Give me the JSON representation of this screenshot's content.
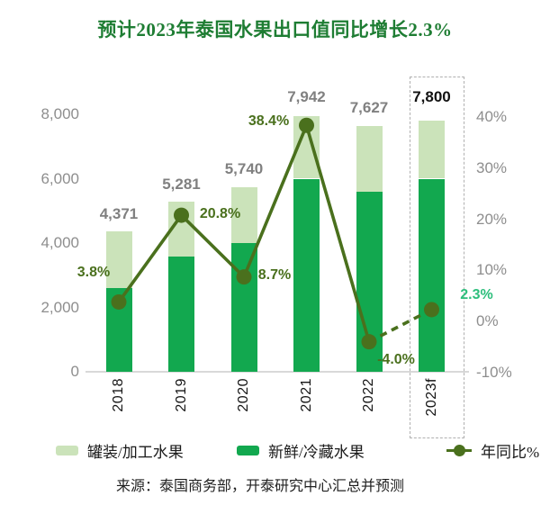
{
  "title": "预计2023年泰国水果出口值同比增长2.3%",
  "source": "来源：泰国商务部，开泰研究中心汇总并预测",
  "legend": {
    "canned": "罐装/加工水果",
    "fresh": "新鲜/冷藏水果",
    "yoy": "年同比%"
  },
  "colors": {
    "canned": "#cbe3ba",
    "fresh": "#12a84f",
    "line": "#4a701d",
    "yoy_forecast_label": "#2dbe7c",
    "axis_text": "#8e8e8e",
    "bar_label": "#808080",
    "forecast_bar_label": "#111111",
    "title": "#1e7d33",
    "forecast_box": "#b0b0b0"
  },
  "chart_data": {
    "type": "bar",
    "subtype": "stacked-bars-with-line-overlay",
    "categories": [
      "2018",
      "2019",
      "2020",
      "2021",
      "2022",
      "2023f"
    ],
    "series": [
      {
        "name": "罐装/加工水果",
        "type": "bar",
        "stack": true,
        "axis": "left",
        "values": [
          1771,
          1701,
          1740,
          1942,
          2037,
          1800
        ]
      },
      {
        "name": "新鲜/冷藏水果",
        "type": "bar",
        "stack": true,
        "axis": "left",
        "values": [
          2600,
          3580,
          4000,
          6000,
          5590,
          6000
        ]
      },
      {
        "name": "年同比%",
        "type": "line",
        "axis": "right",
        "values": [
          3.8,
          20.8,
          8.7,
          38.4,
          -4.0,
          2.3
        ],
        "labels": [
          "3.8%",
          "20.8%",
          "8.7%",
          "38.4%",
          "-4.0%",
          "2.3%"
        ],
        "dashed_from_index": 4
      }
    ],
    "totals_labels": [
      "4,371",
      "5,281",
      "5,740",
      "7,942",
      "7,627",
      "7,800"
    ],
    "left_axis": {
      "range": [
        0,
        8000
      ],
      "ticks": [
        {
          "value": 8000,
          "label": "8,000"
        },
        {
          "value": 6000,
          "label": "6,000"
        },
        {
          "value": 4000,
          "label": "4,000"
        },
        {
          "value": 2000,
          "label": "2,000"
        },
        {
          "value": 0,
          "label": "0"
        }
      ]
    },
    "right_axis": {
      "range": [
        -10,
        40
      ],
      "ticks": [
        {
          "value": 40,
          "label": "40%"
        },
        {
          "value": 30,
          "label": "30%"
        },
        {
          "value": 20,
          "label": "20%"
        },
        {
          "value": 10,
          "label": "10%"
        },
        {
          "value": 0,
          "label": "0%"
        },
        {
          "value": -10,
          "label": "-10%"
        }
      ]
    },
    "forecast_index": 5,
    "grid": false,
    "legend_position": "bottom"
  }
}
